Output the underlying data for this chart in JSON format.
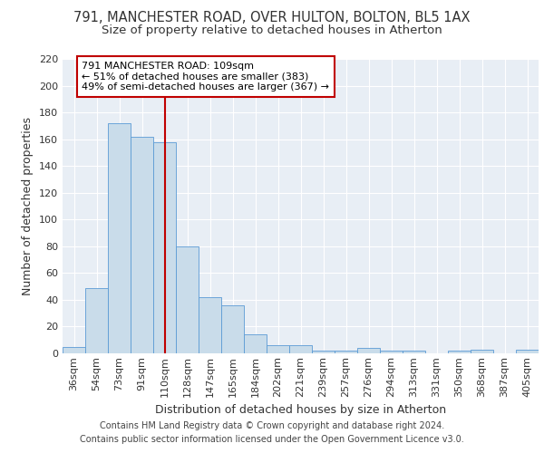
{
  "title_line1": "791, MANCHESTER ROAD, OVER HULTON, BOLTON, BL5 1AX",
  "title_line2": "Size of property relative to detached houses in Atherton",
  "xlabel": "Distribution of detached houses by size in Atherton",
  "ylabel": "Number of detached properties",
  "categories": [
    "36sqm",
    "54sqm",
    "73sqm",
    "91sqm",
    "110sqm",
    "128sqm",
    "147sqm",
    "165sqm",
    "184sqm",
    "202sqm",
    "221sqm",
    "239sqm",
    "257sqm",
    "276sqm",
    "294sqm",
    "313sqm",
    "331sqm",
    "350sqm",
    "368sqm",
    "387sqm",
    "405sqm"
  ],
  "values": [
    5,
    49,
    172,
    162,
    158,
    80,
    42,
    36,
    14,
    6,
    6,
    2,
    2,
    4,
    2,
    2,
    0,
    2,
    3,
    0,
    3
  ],
  "bar_color": "#c9dcea",
  "bar_edge_color": "#5b9bd5",
  "highlight_line_index": 4,
  "highlight_line_color": "#c00000",
  "annotation_text": "791 MANCHESTER ROAD: 109sqm\n← 51% of detached houses are smaller (383)\n49% of semi-detached houses are larger (367) →",
  "annotation_box_facecolor": "#ffffff",
  "annotation_box_edgecolor": "#c00000",
  "ylim": [
    0,
    220
  ],
  "yticks": [
    0,
    20,
    40,
    60,
    80,
    100,
    120,
    140,
    160,
    180,
    200,
    220
  ],
  "footer_line1": "Contains HM Land Registry data © Crown copyright and database right 2024.",
  "footer_line2": "Contains public sector information licensed under the Open Government Licence v3.0.",
  "background_color": "#e8eef5",
  "grid_color": "#ffffff",
  "title_fontsize": 10.5,
  "subtitle_fontsize": 9.5,
  "axis_label_fontsize": 9,
  "tick_fontsize": 8,
  "annotation_fontsize": 8,
  "footer_fontsize": 7
}
